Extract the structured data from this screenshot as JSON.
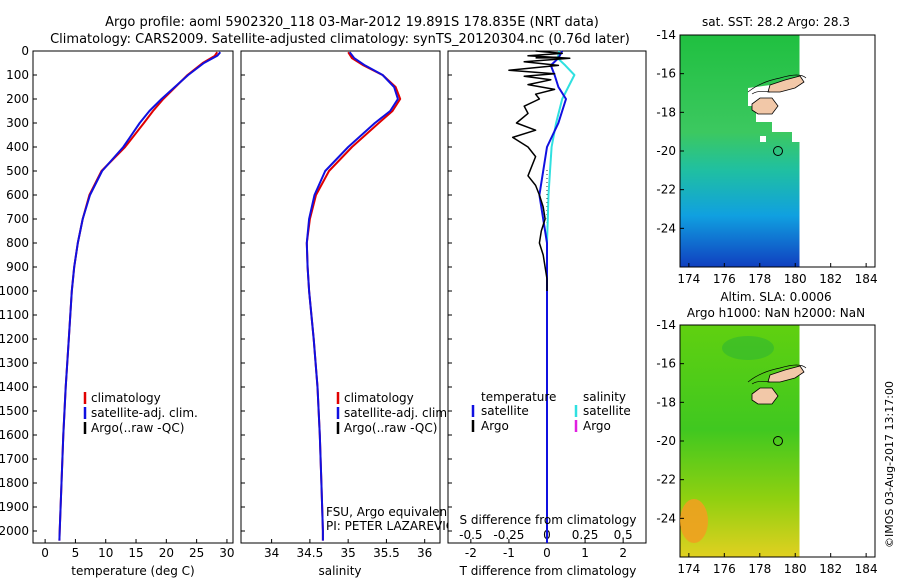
{
  "title": {
    "line1": "Argo profile: aoml 5902320_118 03-Mar-2012 19.891S 178.835E (NRT data)",
    "line2": "Climatology: CARS2009. Satellite-adjusted climatology: synTS_20120304.nc (0.76d later)"
  },
  "colors": {
    "climatology": "#e00000",
    "satellite_temp": "#1010e0",
    "argo_temp": "#000000",
    "satellite_sal": "#30e0e0",
    "argo_sal": "#e020e0"
  },
  "chart_data": [
    {
      "id": "temperature",
      "type": "line",
      "xlabel": "temperature (deg C)",
      "xlim": [
        -2,
        31
      ],
      "xticks": [
        "0",
        "5",
        "10",
        "15",
        "20",
        "25",
        "30"
      ],
      "ylim": [
        2050,
        0
      ],
      "yticks": [
        "0",
        "100",
        "200",
        "300",
        "400",
        "500",
        "600",
        "700",
        "800",
        "900",
        "1000",
        "1100",
        "1200",
        "1300",
        "1400",
        "1500",
        "1600",
        "1700",
        "1800",
        "1900",
        "2000"
      ],
      "series": [
        {
          "name": "climatology",
          "depth": [
            5,
            20,
            50,
            100,
            150,
            200,
            250,
            300,
            400,
            500,
            600,
            700,
            800,
            900,
            1000,
            1200,
            1400,
            1600,
            1800,
            2000,
            2040
          ],
          "values": [
            28.4,
            28,
            26,
            23.5,
            21.5,
            19.5,
            17.8,
            16.3,
            13.2,
            9.3,
            7.3,
            6.2,
            5.4,
            4.8,
            4.4,
            3.9,
            3.4,
            3.0,
            2.7,
            2.4,
            2.35
          ]
        },
        {
          "name": "satellite-adj. clim.",
          "depth": [
            5,
            20,
            50,
            100,
            150,
            200,
            250,
            300,
            400,
            500,
            600,
            700,
            800,
            900,
            1000,
            1200,
            1400,
            1600,
            1800,
            2000,
            2040
          ],
          "values": [
            28.9,
            28.4,
            26.2,
            23.6,
            21.4,
            19.2,
            17.2,
            15.6,
            12.9,
            9.4,
            7.4,
            6.2,
            5.4,
            4.8,
            4.4,
            3.9,
            3.4,
            3.0,
            2.7,
            2.4,
            2.35
          ]
        }
      ],
      "legend": [
        "climatology",
        "satellite-adj. clim.",
        "Argo(..raw -QC)"
      ]
    },
    {
      "id": "salinity",
      "type": "line",
      "xlabel": "salinity",
      "xlim": [
        33.6,
        36.2
      ],
      "xticks": [
        "34",
        "34.5",
        "35",
        "35.5",
        "36"
      ],
      "ylim": [
        2050,
        0
      ],
      "series": [
        {
          "name": "climatology",
          "depth": [
            5,
            30,
            60,
            100,
            150,
            200,
            250,
            300,
            400,
            500,
            600,
            700,
            800,
            900,
            1000,
            1100,
            1200,
            1400,
            1600,
            1800,
            2000,
            2040
          ],
          "values": [
            35.0,
            35.05,
            35.2,
            35.45,
            35.62,
            35.68,
            35.58,
            35.4,
            35.05,
            34.75,
            34.58,
            34.5,
            34.46,
            34.47,
            34.49,
            34.52,
            34.55,
            34.6,
            34.63,
            34.65,
            34.67,
            34.67
          ]
        },
        {
          "name": "satellite-adj. clim.",
          "depth": [
            5,
            30,
            60,
            100,
            150,
            200,
            250,
            300,
            400,
            500,
            600,
            700,
            800,
            900,
            1000,
            1100,
            1200,
            1400,
            1600,
            1800,
            2000,
            2040
          ],
          "values": [
            35.02,
            35.08,
            35.22,
            35.45,
            35.6,
            35.65,
            35.55,
            35.35,
            35.0,
            34.7,
            34.56,
            34.49,
            34.46,
            34.47,
            34.49,
            34.52,
            34.55,
            34.6,
            34.63,
            34.65,
            34.67,
            34.67
          ]
        }
      ],
      "legend": [
        "climatology",
        "satellite-adj. clim.",
        "Argo(..raw -QC)"
      ],
      "annotation": [
        "FSU, Argo equivalent",
        "PI: PETER LAZAREVICH"
      ]
    },
    {
      "id": "difference",
      "type": "line",
      "xlabel_bottom": "T difference from climatology",
      "xticks_bottom": [
        "-2",
        "-1",
        "0",
        "1",
        "2"
      ],
      "xlim": [
        -2.6,
        2.6
      ],
      "xlabel_top": "S difference from climatology",
      "xticks_top": [
        "-0.5",
        "-0.25",
        "0",
        "0.25",
        "0.5"
      ],
      "ylim": [
        2050,
        0
      ],
      "series": [
        {
          "name": "Argo temperature",
          "depth": [
            0,
            10,
            20,
            30,
            45,
            60,
            80,
            95,
            105,
            120,
            140,
            160,
            180,
            200,
            230,
            260,
            300,
            330,
            360,
            400,
            440,
            480,
            520,
            560,
            600,
            650,
            700,
            750,
            800,
            850,
            900,
            950,
            1000
          ],
          "values": [
            -0.3,
            0.4,
            -0.5,
            0.6,
            -0.6,
            0.3,
            -1.0,
            0.2,
            -0.6,
            0.1,
            -0.5,
            0.2,
            -0.3,
            -0.2,
            -0.6,
            -0.5,
            -0.8,
            -0.3,
            -0.9,
            -0.5,
            -0.3,
            -0.4,
            -0.5,
            -0.3,
            -0.2,
            -0.1,
            -0.05,
            -0.15,
            -0.2,
            -0.1,
            -0.05,
            0,
            0
          ]
        },
        {
          "name": "satellite temperature",
          "depth": [
            0,
            30,
            60,
            100,
            150,
            200,
            300,
            400,
            500,
            600,
            800,
            1000,
            1500,
            2000,
            2050
          ],
          "values": [
            0.4,
            0.3,
            0.1,
            0.2,
            0.3,
            0.5,
            0.3,
            0.0,
            -0.1,
            -0.2,
            0,
            0,
            0,
            0,
            0
          ]
        },
        {
          "name": "satellite salinity",
          "depth": [
            0,
            30,
            60,
            100,
            150,
            200,
            300,
            400,
            500,
            600,
            700,
            800,
            1000,
            1500,
            2000,
            2050
          ],
          "values": [
            0.08,
            0.07,
            0.12,
            0.18,
            0.14,
            0.1,
            0.06,
            0.03,
            0.02,
            0.01,
            0.005,
            0,
            0,
            0,
            0,
            0
          ]
        }
      ],
      "legend": {
        "temperature": "temperature",
        "salinity": "salinity",
        "satellite": "satellite",
        "argo": "Argo"
      }
    },
    {
      "id": "sst_map",
      "type": "heatmap",
      "title": "sat. SST: 28.2 Argo: 28.3",
      "xlim": [
        173.5,
        184.5
      ],
      "ylim": [
        -26,
        -14
      ],
      "xticks": [
        "174",
        "176",
        "178",
        "180",
        "182",
        "184"
      ],
      "yticks": [
        "-14",
        "-16",
        "-18",
        "-20",
        "-22",
        "-24"
      ],
      "argo_position": [
        178.835,
        -19.891
      ]
    },
    {
      "id": "sla_map",
      "type": "heatmap",
      "title_line1": "Altim. SLA: 0.0006",
      "title_line2": "Argo h1000: NaN h2000: NaN",
      "xlim": [
        173.5,
        184.5
      ],
      "ylim": [
        -26,
        -14
      ],
      "xticks": [
        "174",
        "176",
        "178",
        "180",
        "182",
        "184"
      ],
      "yticks": [
        "-14",
        "-16",
        "-18",
        "-20",
        "-22",
        "-24"
      ],
      "argo_position": [
        178.835,
        -19.891
      ]
    }
  ],
  "credit": "©IMOS 03-Aug-2017 13:17:00"
}
